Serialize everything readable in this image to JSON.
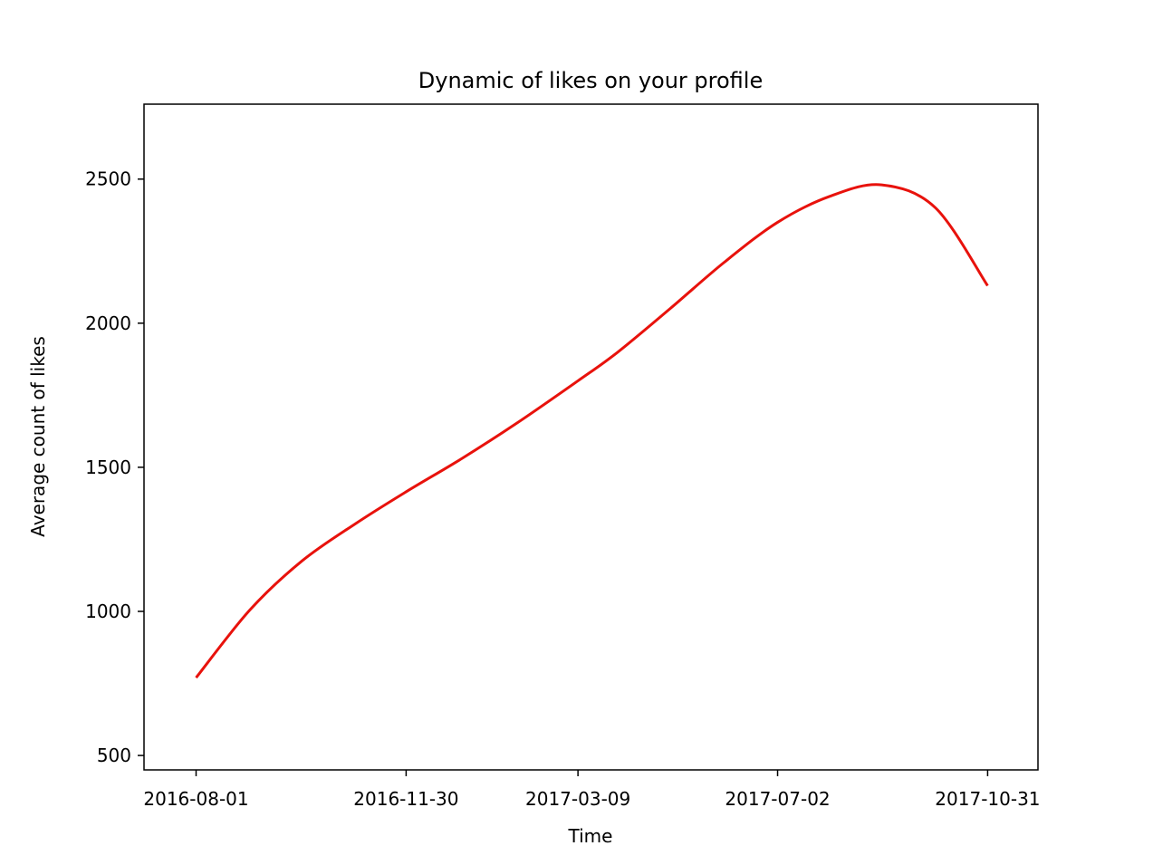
{
  "chart_data": {
    "type": "line",
    "title": "Dynamic of likes on your profile",
    "xlabel": "Time",
    "ylabel": "Average count of likes",
    "x_type": "date",
    "xlim": [
      "2016-07-02",
      "2017-11-29"
    ],
    "ylim": [
      450,
      2760
    ],
    "x_ticks": [
      "2016-08-01",
      "2016-11-30",
      "2017-03-09",
      "2017-07-02",
      "2017-10-31"
    ],
    "y_ticks": [
      500,
      1000,
      1500,
      2000,
      2500
    ],
    "grid": false,
    "legend": "none",
    "series": [
      {
        "color": "#e8120c",
        "points": [
          {
            "x": "2016-08-01",
            "y": 770
          },
          {
            "x": "2016-09-01",
            "y": 1005
          },
          {
            "x": "2016-10-01",
            "y": 1175
          },
          {
            "x": "2016-11-01",
            "y": 1305
          },
          {
            "x": "2016-11-30",
            "y": 1415
          },
          {
            "x": "2017-01-01",
            "y": 1530
          },
          {
            "x": "2017-02-01",
            "y": 1650
          },
          {
            "x": "2017-03-09",
            "y": 1800
          },
          {
            "x": "2017-04-01",
            "y": 1900
          },
          {
            "x": "2017-05-01",
            "y": 2050
          },
          {
            "x": "2017-06-01",
            "y": 2210
          },
          {
            "x": "2017-07-02",
            "y": 2350
          },
          {
            "x": "2017-08-01",
            "y": 2440
          },
          {
            "x": "2017-08-31",
            "y": 2480
          },
          {
            "x": "2017-10-01",
            "y": 2400
          },
          {
            "x": "2017-10-31",
            "y": 2130
          }
        ]
      }
    ]
  }
}
